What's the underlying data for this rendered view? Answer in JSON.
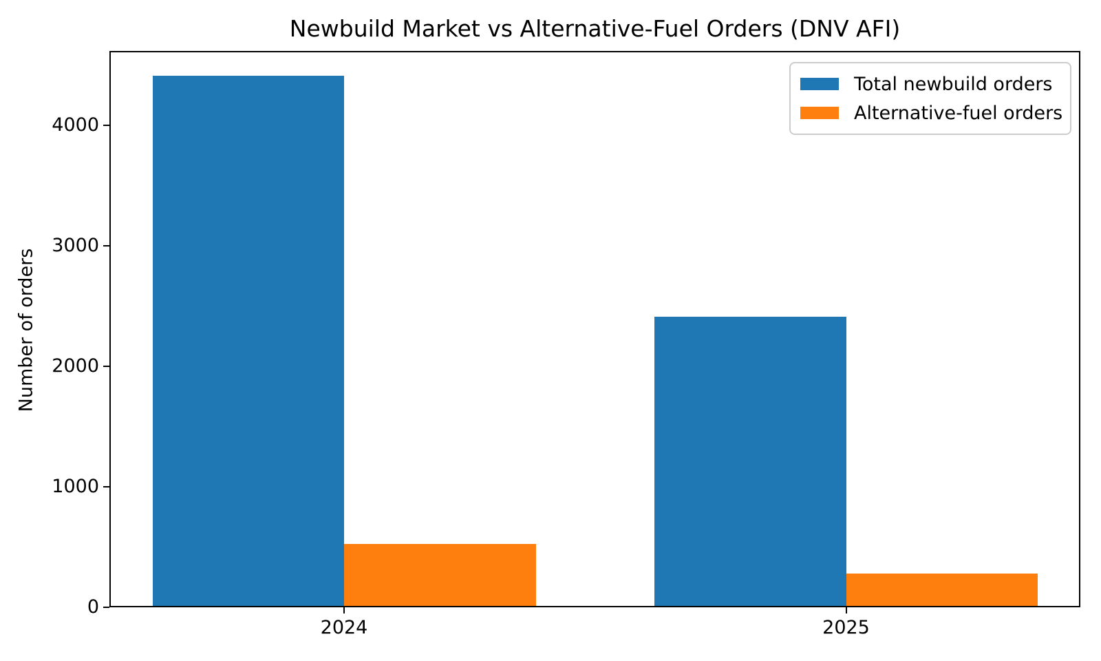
{
  "title": "Newbuild Market vs Alternative-Fuel Orders (DNV AFI)",
  "chart_data": {
    "type": "bar",
    "title": "Newbuild Market vs Alternative-Fuel Orders (DNV AFI)",
    "xlabel": "",
    "ylabel": "Number of orders",
    "categories": [
      "2024",
      "2025"
    ],
    "series": [
      {
        "name": "Total newbuild orders",
        "color": "#1f77b4",
        "values": [
          4400,
          2400
        ]
      },
      {
        "name": "Alternative-fuel orders",
        "color": "#ff7f0e",
        "values": [
          515,
          270
        ]
      }
    ],
    "ylim": [
      0,
      4620
    ],
    "yticks": [
      0,
      1000,
      2000,
      3000,
      4000
    ],
    "legend_position": "upper right",
    "grid": false,
    "bar_arrangement": "grouped-adjacent"
  }
}
